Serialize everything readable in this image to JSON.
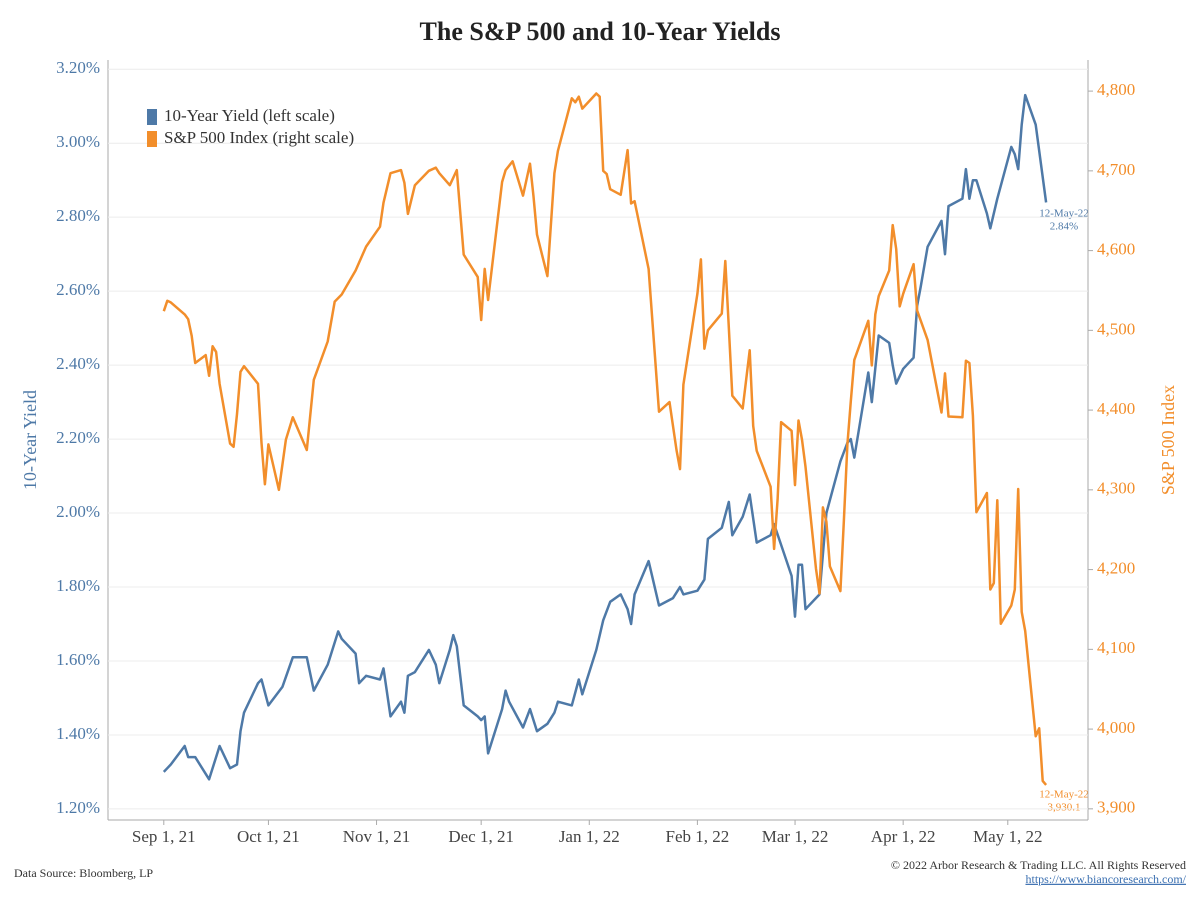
{
  "chart_data": {
    "type": "line",
    "title": "The S&P 500 and 10-Year Yields",
    "y_label": "10-Year Yield",
    "y2_label": "S&P 500 Index",
    "source": "Data Source: Bloomberg, LP",
    "copyright": "© 2022 Arbor Research & Trading LLC. All Rights Reserved",
    "url": "https://www.biancoresearch.com/",
    "annotations": [
      "12-May-22",
      "2.84%",
      "12-May-22",
      "3,930.1"
    ],
    "xlim": [
      "2021-08-16",
      "2022-05-24"
    ],
    "xticks": [
      {
        "value": "2021-09-01",
        "label": "Sep 1, 21"
      },
      {
        "value": "2021-10-01",
        "label": "Oct 1, 21"
      },
      {
        "value": "2021-11-01",
        "label": "Nov 1, 21"
      },
      {
        "value": "2021-12-01",
        "label": "Dec 1, 21"
      },
      {
        "value": "2022-01-01",
        "label": "Jan 1, 22"
      },
      {
        "value": "2022-02-01",
        "label": "Feb 1, 22"
      },
      {
        "value": "2022-03-01",
        "label": "Mar 1, 22"
      },
      {
        "value": "2022-04-01",
        "label": "Apr 1, 22"
      },
      {
        "value": "2022-05-01",
        "label": "May 1, 22"
      }
    ],
    "ylim": [
      1.17,
      3.225
    ],
    "yticks": [
      {
        "value": 1.2,
        "label": "1.20%"
      },
      {
        "value": 1.4,
        "label": "1.40%"
      },
      {
        "value": 1.6,
        "label": "1.60%"
      },
      {
        "value": 1.8,
        "label": "1.80%"
      },
      {
        "value": 2.0,
        "label": "2.00%"
      },
      {
        "value": 2.2,
        "label": "2.20%"
      },
      {
        "value": 2.4,
        "label": "2.40%"
      },
      {
        "value": 2.6,
        "label": "2.60%"
      },
      {
        "value": 2.8,
        "label": "2.80%"
      },
      {
        "value": 3.0,
        "label": "3.00%"
      },
      {
        "value": 3.2,
        "label": "3.20%"
      }
    ],
    "y2lim": [
      3886,
      4839
    ],
    "y2ticks": [
      {
        "value": 3900,
        "label": "3,900"
      },
      {
        "value": 4000,
        "label": "4,000"
      },
      {
        "value": 4100,
        "label": "4,100"
      },
      {
        "value": 4200,
        "label": "4,200"
      },
      {
        "value": 4300,
        "label": "4,300"
      },
      {
        "value": 4400,
        "label": "4,400"
      },
      {
        "value": 4500,
        "label": "4,500"
      },
      {
        "value": 4600,
        "label": "4,600"
      },
      {
        "value": 4700,
        "label": "4,700"
      },
      {
        "value": 4800,
        "label": "4,800"
      }
    ],
    "grid": true,
    "legend": "top-left",
    "series": [
      {
        "name": "10-Year Yield (left scale)",
        "color": "#4e79a7",
        "axis": "y",
        "x": [
          "2021-09-01",
          "2021-09-02",
          "2021-09-03",
          "2021-09-07",
          "2021-09-08",
          "2021-09-10",
          "2021-09-14",
          "2021-09-17",
          "2021-09-20",
          "2021-09-22",
          "2021-09-23",
          "2021-09-24",
          "2021-09-28",
          "2021-09-29",
          "2021-10-01",
          "2021-10-05",
          "2021-10-08",
          "2021-10-12",
          "2021-10-14",
          "2021-10-18",
          "2021-10-20",
          "2021-10-21",
          "2021-10-22",
          "2021-10-25",
          "2021-10-26",
          "2021-10-27",
          "2021-10-29",
          "2021-11-02",
          "2021-11-03",
          "2021-11-05",
          "2021-11-08",
          "2021-11-09",
          "2021-11-10",
          "2021-11-12",
          "2021-11-16",
          "2021-11-18",
          "2021-11-19",
          "2021-11-22",
          "2021-11-23",
          "2021-11-24",
          "2021-11-26",
          "2021-11-30",
          "2021-12-01",
          "2021-12-02",
          "2021-12-03",
          "2021-12-07",
          "2021-12-08",
          "2021-12-09",
          "2021-12-13",
          "2021-12-15",
          "2021-12-17",
          "2021-12-20",
          "2021-12-22",
          "2021-12-23",
          "2021-12-27",
          "2021-12-29",
          "2021-12-30",
          "2022-01-03",
          "2022-01-05",
          "2022-01-07",
          "2022-01-10",
          "2022-01-12",
          "2022-01-13",
          "2022-01-14",
          "2022-01-18",
          "2022-01-19",
          "2022-01-21",
          "2022-01-25",
          "2022-01-27",
          "2022-01-28",
          "2022-02-01",
          "2022-02-03",
          "2022-02-04",
          "2022-02-08",
          "2022-02-10",
          "2022-02-11",
          "2022-02-14",
          "2022-02-16",
          "2022-02-18",
          "2022-02-22",
          "2022-02-23",
          "2022-02-28",
          "2022-03-01",
          "2022-03-02",
          "2022-03-03",
          "2022-03-04",
          "2022-03-08",
          "2022-03-10",
          "2022-03-14",
          "2022-03-16",
          "2022-03-17",
          "2022-03-18",
          "2022-03-22",
          "2022-03-23",
          "2022-03-25",
          "2022-03-28",
          "2022-03-29",
          "2022-03-30",
          "2022-04-01",
          "2022-04-04",
          "2022-04-05",
          "2022-04-06",
          "2022-04-08",
          "2022-04-12",
          "2022-04-13",
          "2022-04-14",
          "2022-04-18",
          "2022-04-19",
          "2022-04-20",
          "2022-04-21",
          "2022-04-22",
          "2022-04-25",
          "2022-04-26",
          "2022-04-28",
          "2022-05-02",
          "2022-05-03",
          "2022-05-04",
          "2022-05-05",
          "2022-05-06",
          "2022-05-09",
          "2022-05-12"
        ],
        "values": [
          1.3,
          1.31,
          1.32,
          1.37,
          1.34,
          1.34,
          1.28,
          1.37,
          1.31,
          1.32,
          1.41,
          1.46,
          1.54,
          1.55,
          1.48,
          1.53,
          1.61,
          1.61,
          1.52,
          1.59,
          1.65,
          1.68,
          1.66,
          1.63,
          1.62,
          1.54,
          1.56,
          1.55,
          1.58,
          1.45,
          1.49,
          1.46,
          1.56,
          1.57,
          1.63,
          1.59,
          1.54,
          1.63,
          1.67,
          1.64,
          1.48,
          1.45,
          1.44,
          1.45,
          1.35,
          1.47,
          1.52,
          1.49,
          1.42,
          1.47,
          1.41,
          1.43,
          1.46,
          1.49,
          1.48,
          1.55,
          1.51,
          1.63,
          1.71,
          1.76,
          1.78,
          1.74,
          1.7,
          1.78,
          1.87,
          1.83,
          1.75,
          1.77,
          1.8,
          1.78,
          1.79,
          1.82,
          1.93,
          1.96,
          2.03,
          1.94,
          1.99,
          2.05,
          1.92,
          1.94,
          1.97,
          1.83,
          1.72,
          1.86,
          1.86,
          1.74,
          1.78,
          2.0,
          2.14,
          2.19,
          2.2,
          2.15,
          2.38,
          2.3,
          2.48,
          2.46,
          2.4,
          2.35,
          2.39,
          2.42,
          2.56,
          2.61,
          2.72,
          2.79,
          2.7,
          2.83,
          2.85,
          2.93,
          2.85,
          2.9,
          2.9,
          2.81,
          2.77,
          2.85,
          2.99,
          2.97,
          2.93,
          3.05,
          3.13,
          3.05,
          2.84
        ]
      },
      {
        "name": "S&P 500 Index (right scale)",
        "color": "#f28e2b",
        "axis": "y2",
        "x": [
          "2021-09-01",
          "2021-09-02",
          "2021-09-03",
          "2021-09-07",
          "2021-09-08",
          "2021-09-09",
          "2021-09-10",
          "2021-09-13",
          "2021-09-14",
          "2021-09-15",
          "2021-09-16",
          "2021-09-17",
          "2021-09-20",
          "2021-09-21",
          "2021-09-22",
          "2021-09-23",
          "2021-09-24",
          "2021-09-28",
          "2021-09-29",
          "2021-09-30",
          "2021-10-01",
          "2021-10-04",
          "2021-10-06",
          "2021-10-08",
          "2021-10-12",
          "2021-10-14",
          "2021-10-18",
          "2021-10-20",
          "2021-10-22",
          "2021-10-26",
          "2021-10-29",
          "2021-11-02",
          "2021-11-03",
          "2021-11-05",
          "2021-11-08",
          "2021-11-09",
          "2021-11-10",
          "2021-11-12",
          "2021-11-16",
          "2021-11-18",
          "2021-11-19",
          "2021-11-22",
          "2021-11-24",
          "2021-11-26",
          "2021-11-30",
          "2021-12-01",
          "2021-12-02",
          "2021-12-03",
          "2021-12-07",
          "2021-12-08",
          "2021-12-10",
          "2021-12-13",
          "2021-12-15",
          "2021-12-16",
          "2021-12-17",
          "2021-12-20",
          "2021-12-22",
          "2021-12-23",
          "2021-12-27",
          "2021-12-28",
          "2021-12-29",
          "2021-12-30",
          "2022-01-03",
          "2022-01-04",
          "2022-01-05",
          "2022-01-06",
          "2022-01-07",
          "2022-01-10",
          "2022-01-12",
          "2022-01-13",
          "2022-01-14",
          "2022-01-18",
          "2022-01-21",
          "2022-01-24",
          "2022-01-26",
          "2022-01-27",
          "2022-01-28",
          "2022-02-01",
          "2022-02-02",
          "2022-02-03",
          "2022-02-04",
          "2022-02-08",
          "2022-02-09",
          "2022-02-10",
          "2022-02-11",
          "2022-02-14",
          "2022-02-16",
          "2022-02-17",
          "2022-02-18",
          "2022-02-22",
          "2022-02-23",
          "2022-02-24",
          "2022-02-25",
          "2022-02-28",
          "2022-03-01",
          "2022-03-02",
          "2022-03-03",
          "2022-03-04",
          "2022-03-07",
          "2022-03-08",
          "2022-03-09",
          "2022-03-10",
          "2022-03-11",
          "2022-03-14",
          "2022-03-15",
          "2022-03-16",
          "2022-03-17",
          "2022-03-18",
          "2022-03-22",
          "2022-03-23",
          "2022-03-24",
          "2022-03-25",
          "2022-03-28",
          "2022-03-29",
          "2022-03-30",
          "2022-03-31",
          "2022-04-01",
          "2022-04-04",
          "2022-04-05",
          "2022-04-08",
          "2022-04-12",
          "2022-04-13",
          "2022-04-14",
          "2022-04-18",
          "2022-04-19",
          "2022-04-20",
          "2022-04-21",
          "2022-04-22",
          "2022-04-25",
          "2022-04-26",
          "2022-04-27",
          "2022-04-28",
          "2022-04-29",
          "2022-05-02",
          "2022-05-03",
          "2022-05-04",
          "2022-05-05",
          "2022-05-06",
          "2022-05-09",
          "2022-05-10",
          "2022-05-11",
          "2022-05-12"
        ],
        "values": [
          4524,
          4537,
          4535,
          4520,
          4514,
          4493,
          4459,
          4469,
          4443,
          4480,
          4473,
          4433,
          4358,
          4354,
          4395,
          4448,
          4455,
          4433,
          4359,
          4307,
          4357,
          4300,
          4363,
          4391,
          4350,
          4438,
          4486,
          4536,
          4545,
          4575,
          4605,
          4630,
          4660,
          4697,
          4701,
          4685,
          4646,
          4682,
          4700,
          4704,
          4697,
          4682,
          4701,
          4595,
          4567,
          4513,
          4577,
          4538,
          4686,
          4701,
          4712,
          4669,
          4709,
          4668,
          4620,
          4568,
          4697,
          4725,
          4791,
          4786,
          4793,
          4778,
          4797,
          4793,
          4700,
          4696,
          4677,
          4670,
          4726,
          4659,
          4662,
          4577,
          4398,
          4410,
          4350,
          4326,
          4432,
          4546,
          4589,
          4477,
          4500,
          4521,
          4587,
          4504,
          4418,
          4402,
          4475,
          4380,
          4349,
          4304,
          4226,
          4288,
          4385,
          4374,
          4306,
          4387,
          4363,
          4329,
          4201,
          4170,
          4278,
          4260,
          4204,
          4173,
          4262,
          4357,
          4411,
          4463,
          4512,
          4456,
          4520,
          4543,
          4575,
          4632,
          4602,
          4530,
          4546,
          4583,
          4525,
          4488,
          4397,
          4446,
          4392,
          4391,
          4462,
          4459,
          4393,
          4272,
          4296,
          4175,
          4183,
          4287,
          4132,
          4155,
          4175,
          4301,
          4147,
          4123,
          3991,
          4001,
          3935,
          3930
        ]
      }
    ]
  }
}
